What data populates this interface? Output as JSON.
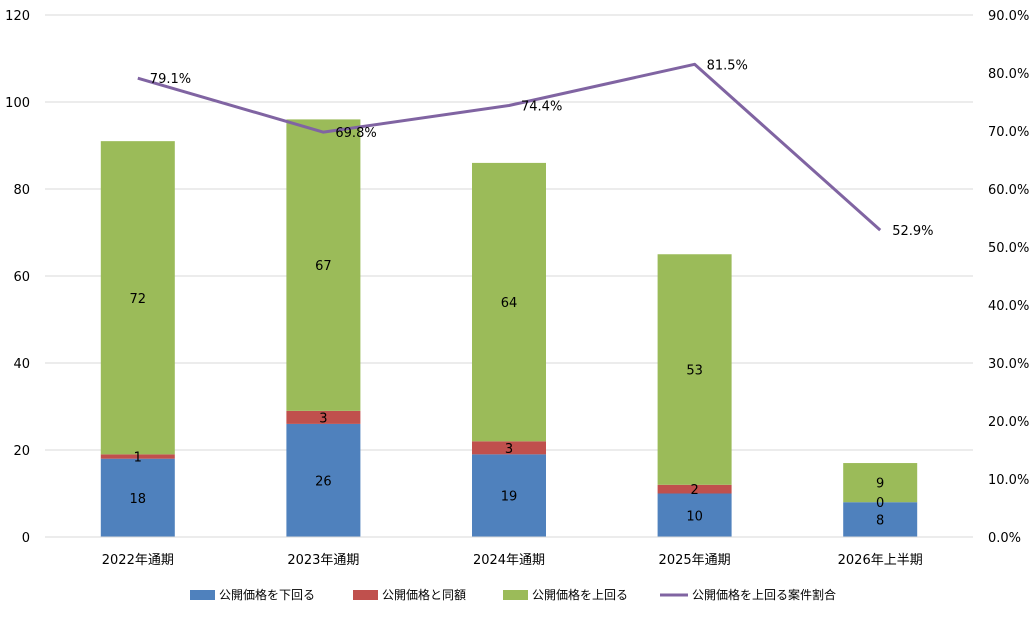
{
  "chart_data": {
    "type": "bar",
    "stacked": true,
    "categories": [
      "2022年通期",
      "2023年通期",
      "2024年通期",
      "2025年通期",
      "2026年上半期"
    ],
    "series": [
      {
        "name": "公開価格を下回る",
        "type": "bar",
        "axis": "left",
        "color": "#4f81bd",
        "values": [
          18,
          26,
          19,
          10,
          8
        ]
      },
      {
        "name": "公開価格と同額",
        "type": "bar",
        "axis": "left",
        "color": "#c0504d",
        "values": [
          1,
          3,
          3,
          2,
          0
        ]
      },
      {
        "name": "公開価格を上回る",
        "type": "bar",
        "axis": "left",
        "color": "#9bbb59",
        "values": [
          72,
          67,
          64,
          53,
          9
        ]
      },
      {
        "name": "公開価格を上回る案件割合",
        "type": "line",
        "axis": "right",
        "color": "#8064a2",
        "values": [
          79.1,
          69.8,
          74.4,
          81.5,
          52.9
        ],
        "labels": [
          "79.1%",
          "69.8%",
          "74.4%",
          "81.5%",
          "52.9%"
        ]
      }
    ],
    "y_left": {
      "ylim": [
        0,
        120
      ],
      "ticks": [
        "0",
        "20",
        "40",
        "60",
        "80",
        "100",
        "120"
      ]
    },
    "y_right": {
      "ylim": [
        0,
        90
      ],
      "ticks": [
        "0.0%",
        "10.0%",
        "20.0%",
        "30.0%",
        "40.0%",
        "50.0%",
        "60.0%",
        "70.0%",
        "80.0%",
        "90.0%"
      ]
    },
    "grid": true,
    "legend_position": "bottom",
    "title": "",
    "xlabel": "",
    "ylabel": ""
  }
}
